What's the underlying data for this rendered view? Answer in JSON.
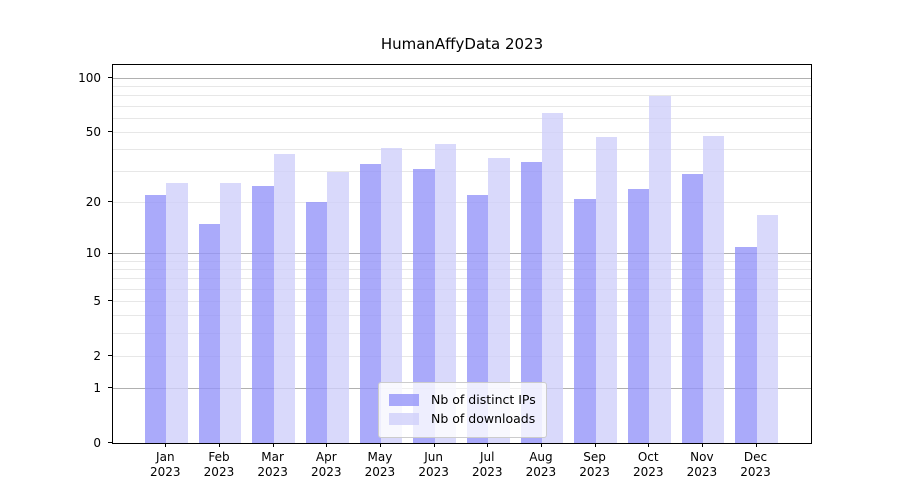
{
  "chart_data": {
    "type": "bar",
    "title": "HumanAffyData 2023",
    "categories": [
      "Jan",
      "Feb",
      "Mar",
      "Apr",
      "May",
      "Jun",
      "Jul",
      "Aug",
      "Sep",
      "Oct",
      "Nov",
      "Dec"
    ],
    "category_year": "2023",
    "series": [
      {
        "name": "Nb of distinct IPs",
        "color": "rgba(149,149,249,0.8)",
        "values": [
          22,
          15,
          25,
          20,
          33,
          31,
          22,
          34,
          21,
          24,
          29,
          11
        ]
      },
      {
        "name": "Nb of downloads",
        "color": "rgba(208,208,250,0.8)",
        "values": [
          26,
          26,
          38,
          30,
          41,
          43,
          36,
          64,
          47,
          80,
          48,
          17
        ]
      }
    ],
    "yscale": "log1p",
    "ylim": [
      0,
      119
    ],
    "xlabel": "",
    "ylabel": "",
    "y_major_ticks": [
      0,
      1,
      2,
      5,
      10,
      20,
      50,
      100
    ],
    "y_major_gridlines": [
      1,
      10,
      100
    ],
    "y_minor_gridlines": [
      2,
      3,
      4,
      5,
      6,
      7,
      8,
      9,
      20,
      30,
      40,
      50,
      60,
      70,
      80,
      90
    ],
    "grid": true,
    "legend_position": "lower center",
    "colors": {
      "bar_distinct_ips": "#a9a9f9",
      "bar_downloads": "#d9d9fb",
      "major_grid": "#b0b0b0",
      "minor_grid": "#e7e7e7",
      "axis": "#000000",
      "background": "#ffffff"
    }
  }
}
